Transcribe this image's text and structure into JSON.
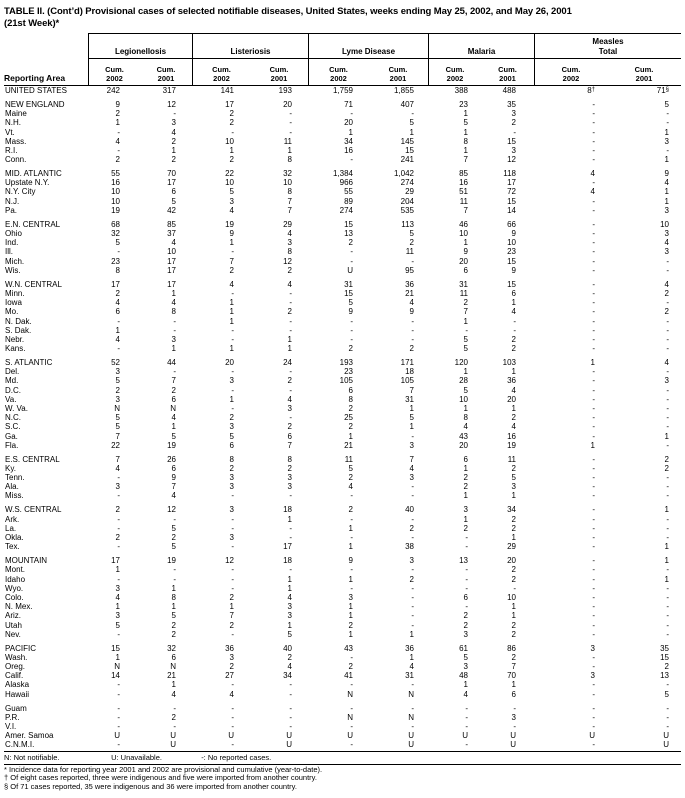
{
  "title": {
    "line1": "TABLE II. (Cont’d) Provisional cases of selected notifiable diseases, United States, weeks ending May 25, 2002, and May 26, 2001",
    "line2": "(21st Week)*"
  },
  "header": {
    "reporting_area": "Reporting Area",
    "cum_label": "Cum.",
    "years": [
      "2002",
      "2001"
    ],
    "groups": [
      {
        "line1": "Legionellosis",
        "line2": ""
      },
      {
        "line1": "Listeriosis",
        "line2": ""
      },
      {
        "line1": "Lyme Disease",
        "line2": ""
      },
      {
        "line1": "Malaria",
        "line2": ""
      },
      {
        "line1": "Measles",
        "line2": "Total"
      }
    ]
  },
  "rows": [
    {
      "type": "total",
      "area": "UNITED STATES",
      "values": [
        "242",
        "317",
        "141",
        "193",
        "1,759",
        "1,855",
        "388",
        "488",
        "8†",
        "71§"
      ]
    },
    {
      "type": "gap"
    },
    {
      "type": "region",
      "area": "NEW ENGLAND",
      "values": [
        "9",
        "12",
        "17",
        "20",
        "71",
        "407",
        "23",
        "35",
        "-",
        "5"
      ]
    },
    {
      "type": "state",
      "area": "Maine",
      "values": [
        "2",
        "-",
        "2",
        "-",
        "-",
        "-",
        "1",
        "3",
        "-",
        "-"
      ]
    },
    {
      "type": "state",
      "area": "N.H.",
      "values": [
        "1",
        "3",
        "2",
        "-",
        "20",
        "5",
        "5",
        "2",
        "-",
        "-"
      ]
    },
    {
      "type": "state",
      "area": "Vt.",
      "values": [
        "-",
        "4",
        "-",
        "-",
        "1",
        "1",
        "1",
        "-",
        "-",
        "1"
      ]
    },
    {
      "type": "state",
      "area": "Mass.",
      "values": [
        "4",
        "2",
        "10",
        "11",
        "34",
        "145",
        "8",
        "15",
        "-",
        "3"
      ]
    },
    {
      "type": "state",
      "area": "R.I.",
      "values": [
        "-",
        "1",
        "1",
        "1",
        "16",
        "15",
        "1",
        "3",
        "-",
        "-"
      ]
    },
    {
      "type": "state",
      "area": "Conn.",
      "values": [
        "2",
        "2",
        "2",
        "8",
        "-",
        "241",
        "7",
        "12",
        "-",
        "1"
      ]
    },
    {
      "type": "gap"
    },
    {
      "type": "region",
      "area": "MID. ATLANTIC",
      "values": [
        "55",
        "70",
        "22",
        "32",
        "1,384",
        "1,042",
        "85",
        "118",
        "4",
        "9"
      ]
    },
    {
      "type": "state",
      "area": "Upstate N.Y.",
      "values": [
        "16",
        "17",
        "10",
        "10",
        "966",
        "274",
        "16",
        "17",
        "-",
        "4"
      ]
    },
    {
      "type": "state",
      "area": "N.Y. City",
      "values": [
        "10",
        "6",
        "5",
        "8",
        "55",
        "29",
        "51",
        "72",
        "4",
        "1"
      ]
    },
    {
      "type": "state",
      "area": "N.J.",
      "values": [
        "10",
        "5",
        "3",
        "7",
        "89",
        "204",
        "11",
        "15",
        "-",
        "1"
      ]
    },
    {
      "type": "state",
      "area": "Pa.",
      "values": [
        "19",
        "42",
        "4",
        "7",
        "274",
        "535",
        "7",
        "14",
        "-",
        "3"
      ]
    },
    {
      "type": "gap"
    },
    {
      "type": "region",
      "area": "E.N. CENTRAL",
      "values": [
        "68",
        "85",
        "19",
        "29",
        "15",
        "113",
        "46",
        "66",
        "-",
        "10"
      ]
    },
    {
      "type": "state",
      "area": "Ohio",
      "values": [
        "32",
        "37",
        "9",
        "4",
        "13",
        "5",
        "10",
        "9",
        "-",
        "3"
      ]
    },
    {
      "type": "state",
      "area": "Ind.",
      "values": [
        "5",
        "4",
        "1",
        "3",
        "2",
        "2",
        "1",
        "10",
        "-",
        "4"
      ]
    },
    {
      "type": "state",
      "area": "Ill.",
      "values": [
        "-",
        "10",
        "-",
        "8",
        "-",
        "11",
        "9",
        "23",
        "-",
        "3"
      ]
    },
    {
      "type": "state",
      "area": "Mich.",
      "values": [
        "23",
        "17",
        "7",
        "12",
        "-",
        "-",
        "20",
        "15",
        "-",
        "-"
      ]
    },
    {
      "type": "state",
      "area": "Wis.",
      "values": [
        "8",
        "17",
        "2",
        "2",
        "U",
        "95",
        "6",
        "9",
        "-",
        "-"
      ]
    },
    {
      "type": "gap"
    },
    {
      "type": "region",
      "area": "W.N. CENTRAL",
      "values": [
        "17",
        "17",
        "4",
        "4",
        "31",
        "36",
        "31",
        "15",
        "-",
        "4"
      ]
    },
    {
      "type": "state",
      "area": "Minn.",
      "values": [
        "2",
        "1",
        "-",
        "-",
        "15",
        "21",
        "11",
        "6",
        "-",
        "2"
      ]
    },
    {
      "type": "state",
      "area": "Iowa",
      "values": [
        "4",
        "4",
        "1",
        "-",
        "5",
        "4",
        "2",
        "1",
        "-",
        "-"
      ]
    },
    {
      "type": "state",
      "area": "Mo.",
      "values": [
        "6",
        "8",
        "1",
        "2",
        "9",
        "9",
        "7",
        "4",
        "-",
        "2"
      ]
    },
    {
      "type": "state",
      "area": "N. Dak.",
      "values": [
        "-",
        "-",
        "1",
        "-",
        "-",
        "-",
        "1",
        "-",
        "-",
        "-"
      ]
    },
    {
      "type": "state",
      "area": "S. Dak.",
      "values": [
        "1",
        "-",
        "-",
        "-",
        "-",
        "-",
        "-",
        "-",
        "-",
        "-"
      ]
    },
    {
      "type": "state",
      "area": "Nebr.",
      "values": [
        "4",
        "3",
        "-",
        "1",
        "-",
        "-",
        "5",
        "2",
        "-",
        "-"
      ]
    },
    {
      "type": "state",
      "area": "Kans.",
      "values": [
        "-",
        "1",
        "1",
        "1",
        "2",
        "2",
        "5",
        "2",
        "-",
        "-"
      ]
    },
    {
      "type": "gap"
    },
    {
      "type": "region",
      "area": "S. ATLANTIC",
      "values": [
        "52",
        "44",
        "20",
        "24",
        "193",
        "171",
        "120",
        "103",
        "1",
        "4"
      ]
    },
    {
      "type": "state",
      "area": "Del.",
      "values": [
        "3",
        "-",
        "-",
        "-",
        "23",
        "18",
        "1",
        "1",
        "-",
        "-"
      ]
    },
    {
      "type": "state",
      "area": "Md.",
      "values": [
        "5",
        "7",
        "3",
        "2",
        "105",
        "105",
        "28",
        "36",
        "-",
        "3"
      ]
    },
    {
      "type": "state",
      "area": "D.C.",
      "values": [
        "2",
        "2",
        "-",
        "-",
        "6",
        "7",
        "5",
        "4",
        "-",
        "-"
      ]
    },
    {
      "type": "state",
      "area": "Va.",
      "values": [
        "3",
        "6",
        "1",
        "4",
        "8",
        "31",
        "10",
        "20",
        "-",
        "-"
      ]
    },
    {
      "type": "state",
      "area": "W. Va.",
      "values": [
        "N",
        "N",
        "-",
        "3",
        "2",
        "1",
        "1",
        "1",
        "-",
        "-"
      ]
    },
    {
      "type": "state",
      "area": "N.C.",
      "values": [
        "5",
        "4",
        "2",
        "-",
        "25",
        "5",
        "8",
        "2",
        "-",
        "-"
      ]
    },
    {
      "type": "state",
      "area": "S.C.",
      "values": [
        "5",
        "1",
        "3",
        "2",
        "2",
        "1",
        "4",
        "4",
        "-",
        "-"
      ]
    },
    {
      "type": "state",
      "area": "Ga.",
      "values": [
        "7",
        "5",
        "5",
        "6",
        "1",
        "-",
        "43",
        "16",
        "-",
        "1"
      ]
    },
    {
      "type": "state",
      "area": "Fla.",
      "values": [
        "22",
        "19",
        "6",
        "7",
        "21",
        "3",
        "20",
        "19",
        "1",
        "-"
      ]
    },
    {
      "type": "gap"
    },
    {
      "type": "region",
      "area": "E.S. CENTRAL",
      "values": [
        "7",
        "26",
        "8",
        "8",
        "11",
        "7",
        "6",
        "11",
        "-",
        "2"
      ]
    },
    {
      "type": "state",
      "area": "Ky.",
      "values": [
        "4",
        "6",
        "2",
        "2",
        "5",
        "4",
        "1",
        "2",
        "-",
        "2"
      ]
    },
    {
      "type": "state",
      "area": "Tenn.",
      "values": [
        "-",
        "9",
        "3",
        "3",
        "2",
        "3",
        "2",
        "5",
        "-",
        "-"
      ]
    },
    {
      "type": "state",
      "area": "Ala.",
      "values": [
        "3",
        "7",
        "3",
        "3",
        "4",
        "-",
        "2",
        "3",
        "-",
        "-"
      ]
    },
    {
      "type": "state",
      "area": "Miss.",
      "values": [
        "-",
        "4",
        "-",
        "-",
        "-",
        "-",
        "1",
        "1",
        "-",
        "-"
      ]
    },
    {
      "type": "gap"
    },
    {
      "type": "region",
      "area": "W.S. CENTRAL",
      "values": [
        "2",
        "12",
        "3",
        "18",
        "2",
        "40",
        "3",
        "34",
        "-",
        "1"
      ]
    },
    {
      "type": "state",
      "area": "Ark.",
      "values": [
        "-",
        "-",
        "-",
        "1",
        "-",
        "-",
        "1",
        "2",
        "-",
        "-"
      ]
    },
    {
      "type": "state",
      "area": "La.",
      "values": [
        "-",
        "5",
        "-",
        "-",
        "1",
        "2",
        "2",
        "2",
        "-",
        "-"
      ]
    },
    {
      "type": "state",
      "area": "Okla.",
      "values": [
        "2",
        "2",
        "3",
        "-",
        "-",
        "-",
        "-",
        "1",
        "-",
        "-"
      ]
    },
    {
      "type": "state",
      "area": "Tex.",
      "values": [
        "-",
        "5",
        "-",
        "17",
        "1",
        "38",
        "-",
        "29",
        "-",
        "1"
      ]
    },
    {
      "type": "gap"
    },
    {
      "type": "region",
      "area": "MOUNTAIN",
      "values": [
        "17",
        "19",
        "12",
        "18",
        "9",
        "3",
        "13",
        "20",
        "-",
        "1"
      ]
    },
    {
      "type": "state",
      "area": "Mont.",
      "values": [
        "1",
        "-",
        "-",
        "-",
        "-",
        "-",
        "-",
        "2",
        "-",
        "-"
      ]
    },
    {
      "type": "state",
      "area": "Idaho",
      "values": [
        "-",
        "-",
        "-",
        "1",
        "1",
        "2",
        "-",
        "2",
        "-",
        "1"
      ]
    },
    {
      "type": "state",
      "area": "Wyo.",
      "values": [
        "3",
        "1",
        "-",
        "1",
        "-",
        "-",
        "-",
        "-",
        "-",
        "-"
      ]
    },
    {
      "type": "state",
      "area": "Colo.",
      "values": [
        "4",
        "8",
        "2",
        "4",
        "3",
        "-",
        "6",
        "10",
        "-",
        "-"
      ]
    },
    {
      "type": "state",
      "area": "N. Mex.",
      "values": [
        "1",
        "1",
        "1",
        "3",
        "1",
        "-",
        "-",
        "1",
        "-",
        "-"
      ]
    },
    {
      "type": "state",
      "area": "Ariz.",
      "values": [
        "3",
        "5",
        "7",
        "3",
        "1",
        "-",
        "2",
        "1",
        "-",
        "-"
      ]
    },
    {
      "type": "state",
      "area": "Utah",
      "values": [
        "5",
        "2",
        "2",
        "1",
        "2",
        "-",
        "2",
        "2",
        "-",
        "-"
      ]
    },
    {
      "type": "state",
      "area": "Nev.",
      "values": [
        "-",
        "2",
        "-",
        "5",
        "1",
        "1",
        "3",
        "2",
        "-",
        "-"
      ]
    },
    {
      "type": "gap"
    },
    {
      "type": "region",
      "area": "PACIFIC",
      "values": [
        "15",
        "32",
        "36",
        "40",
        "43",
        "36",
        "61",
        "86",
        "3",
        "35"
      ]
    },
    {
      "type": "state",
      "area": "Wash.",
      "values": [
        "1",
        "6",
        "3",
        "2",
        "-",
        "1",
        "5",
        "2",
        "-",
        "15"
      ]
    },
    {
      "type": "state",
      "area": "Oreg.",
      "values": [
        "N",
        "N",
        "2",
        "4",
        "2",
        "4",
        "3",
        "7",
        "-",
        "2"
      ]
    },
    {
      "type": "state",
      "area": "Calif.",
      "values": [
        "14",
        "21",
        "27",
        "34",
        "41",
        "31",
        "48",
        "70",
        "3",
        "13"
      ]
    },
    {
      "type": "state",
      "area": "Alaska",
      "values": [
        "-",
        "1",
        "-",
        "-",
        "-",
        "-",
        "1",
        "1",
        "-",
        "-"
      ]
    },
    {
      "type": "state",
      "area": "Hawaii",
      "values": [
        "-",
        "4",
        "4",
        "-",
        "N",
        "N",
        "4",
        "6",
        "-",
        "5"
      ]
    },
    {
      "type": "gap"
    },
    {
      "type": "territory",
      "area": "Guam",
      "values": [
        "-",
        "-",
        "-",
        "-",
        "-",
        "-",
        "-",
        "-",
        "-",
        "-"
      ]
    },
    {
      "type": "territory",
      "area": "P.R.",
      "values": [
        "-",
        "2",
        "-",
        "-",
        "N",
        "N",
        "-",
        "3",
        "-",
        "-"
      ]
    },
    {
      "type": "territory",
      "area": "V.I.",
      "values": [
        "-",
        "-",
        "-",
        "-",
        "-",
        "-",
        "-",
        "-",
        "-",
        "-"
      ]
    },
    {
      "type": "territory",
      "area": "Amer. Samoa",
      "values": [
        "U",
        "U",
        "U",
        "U",
        "U",
        "U",
        "U",
        "U",
        "U",
        "U"
      ]
    },
    {
      "type": "territory",
      "area": "C.N.M.I.",
      "values": [
        "-",
        "U",
        "-",
        "U",
        "-",
        "U",
        "-",
        "U",
        "-",
        "U"
      ]
    }
  ],
  "footnotes": {
    "key_n": "N: Not notifiable.",
    "key_u": "U: Unavailable.",
    "key_dash": "-: No reported cases.",
    "star": "* Incidence data for reporting year 2001 and 2002 are provisional and cumulative (year-to-date).",
    "dagger": "† Of eight cases reported, three were indigenous and five were imported from another country.",
    "section": "§ Of 71 cases reported, 35 were indigenous and 36 were imported from another country."
  }
}
